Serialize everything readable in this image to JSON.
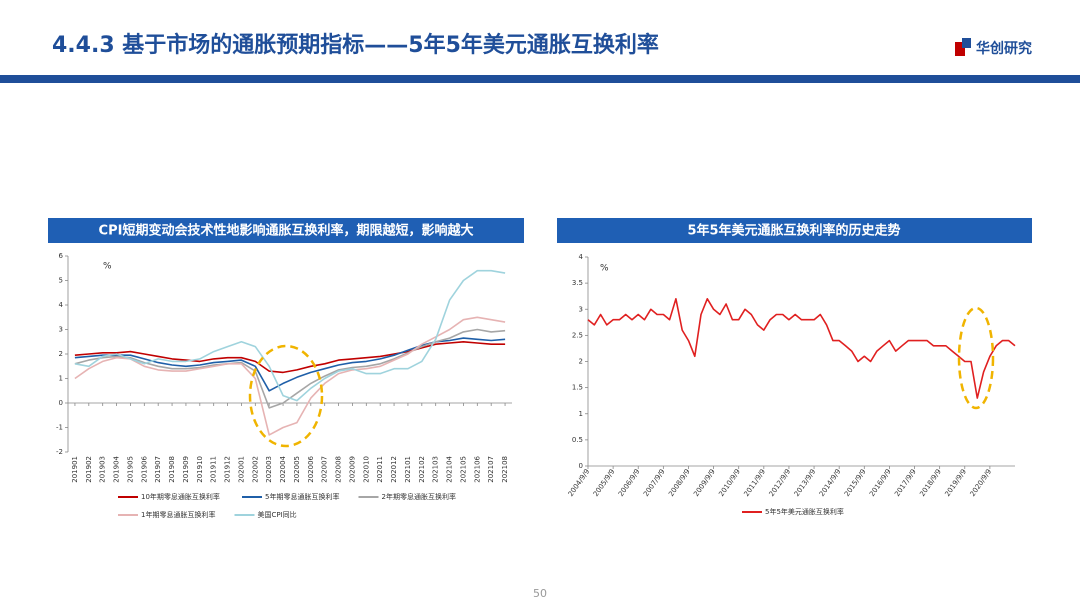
{
  "header": {
    "title": "4.4.3 基于市场的通胀预期指标——5年5年美元通胀互换利率",
    "logo": "华创研究"
  },
  "page_number": "50",
  "chart_data": [
    {
      "type": "line",
      "title": "CPI短期变动会技术性地影响通胀互换利率，期限越短，影响越大",
      "y_unit": "%",
      "categories": [
        "201901",
        "201902",
        "201903",
        "201904",
        "201905",
        "201906",
        "201907",
        "201908",
        "201909",
        "201910",
        "201911",
        "201912",
        "202001",
        "202002",
        "202003",
        "202004",
        "202005",
        "202006",
        "202007",
        "202008",
        "202009",
        "202010",
        "202011",
        "202012",
        "202101",
        "202102",
        "202103",
        "202104",
        "202105",
        "202106",
        "202107",
        "202108"
      ],
      "ylim": [
        -2,
        6
      ],
      "yticks": [
        -2,
        -1,
        0,
        1,
        2,
        3,
        4,
        5,
        6
      ],
      "series": [
        {
          "name": "10年期零息通胀互换利率",
          "color": "#c00000",
          "values": [
            1.95,
            2.0,
            2.05,
            2.05,
            2.1,
            2.0,
            1.9,
            1.8,
            1.75,
            1.7,
            1.8,
            1.85,
            1.85,
            1.7,
            1.3,
            1.25,
            1.35,
            1.5,
            1.6,
            1.75,
            1.8,
            1.85,
            1.9,
            2.0,
            2.1,
            2.25,
            2.4,
            2.45,
            2.5,
            2.45,
            2.4,
            2.4
          ]
        },
        {
          "name": "5年期零息通胀互换利率",
          "color": "#1f5fa8",
          "values": [
            1.85,
            1.9,
            1.95,
            1.95,
            1.95,
            1.8,
            1.65,
            1.55,
            1.5,
            1.55,
            1.65,
            1.7,
            1.75,
            1.5,
            0.5,
            0.8,
            1.05,
            1.25,
            1.4,
            1.55,
            1.65,
            1.7,
            1.8,
            1.95,
            2.15,
            2.35,
            2.5,
            2.55,
            2.65,
            2.6,
            2.55,
            2.6
          ]
        },
        {
          "name": "2年期零息通胀互换利率",
          "color": "#a6a6a6",
          "values": [
            1.6,
            1.75,
            1.85,
            1.9,
            1.85,
            1.65,
            1.5,
            1.4,
            1.4,
            1.45,
            1.55,
            1.6,
            1.65,
            1.3,
            -0.2,
            0.0,
            0.4,
            0.8,
            1.1,
            1.35,
            1.45,
            1.5,
            1.6,
            1.8,
            2.05,
            2.3,
            2.5,
            2.65,
            2.9,
            3.0,
            2.9,
            2.95
          ]
        },
        {
          "name": "1年期零息通胀互换利率",
          "color": "#e6b3b3",
          "values": [
            1.0,
            1.4,
            1.7,
            1.85,
            1.8,
            1.5,
            1.35,
            1.3,
            1.3,
            1.4,
            1.5,
            1.6,
            1.6,
            1.0,
            -1.3,
            -1.0,
            -0.8,
            0.2,
            0.8,
            1.2,
            1.35,
            1.4,
            1.5,
            1.75,
            2.0,
            2.4,
            2.7,
            3.0,
            3.4,
            3.5,
            3.4,
            3.3
          ]
        },
        {
          "name": "美国CPI同比",
          "color": "#9fd3dd",
          "values": [
            1.6,
            1.5,
            1.9,
            2.0,
            1.8,
            1.6,
            1.8,
            1.7,
            1.7,
            1.8,
            2.1,
            2.3,
            2.5,
            2.3,
            1.5,
            0.3,
            0.1,
            0.6,
            1.0,
            1.3,
            1.4,
            1.2,
            1.2,
            1.4,
            1.4,
            1.7,
            2.6,
            4.2,
            5.0,
            5.4,
            5.4,
            5.3
          ]
        }
      ]
    },
    {
      "type": "line",
      "title": "5年5年美元通胀互换利率的历史走势",
      "y_unit": "%",
      "categories": [
        "2004/9/9",
        null,
        null,
        null,
        "2005/9/9",
        null,
        null,
        null,
        "2006/9/9",
        null,
        null,
        null,
        "2007/9/9",
        null,
        null,
        null,
        "2008/9/9",
        null,
        null,
        null,
        "2009/9/9",
        null,
        null,
        null,
        "2010/9/9",
        null,
        null,
        null,
        "2011/9/9",
        null,
        null,
        null,
        "2012/9/9",
        null,
        null,
        null,
        "2013/9/9",
        null,
        null,
        null,
        "2014/9/9",
        null,
        null,
        null,
        "2015/9/9",
        null,
        null,
        null,
        "2016/9/9",
        null,
        null,
        null,
        "2017/9/9",
        null,
        null,
        null,
        "2018/9/9",
        null,
        null,
        null,
        "2019/9/9",
        null,
        null,
        null,
        "2020/9/9",
        null,
        null,
        null,
        null
      ],
      "ylim": [
        0,
        4
      ],
      "yticks": [
        0,
        0.5,
        1,
        1.5,
        2,
        2.5,
        3,
        3.5,
        4
      ],
      "series": [
        {
          "name": "5年5年美元通胀互换利率",
          "color": "#e02020",
          "values": [
            2.8,
            2.7,
            2.9,
            2.7,
            2.8,
            2.8,
            2.9,
            2.8,
            2.9,
            2.8,
            3.0,
            2.9,
            2.9,
            2.8,
            3.2,
            2.6,
            2.4,
            2.1,
            2.9,
            3.2,
            3.0,
            2.9,
            3.1,
            2.8,
            2.8,
            3.0,
            2.9,
            2.7,
            2.6,
            2.8,
            2.9,
            2.9,
            2.8,
            2.9,
            2.8,
            2.8,
            2.8,
            2.9,
            2.7,
            2.4,
            2.4,
            2.3,
            2.2,
            2.0,
            2.1,
            2.0,
            2.2,
            2.3,
            2.4,
            2.2,
            2.3,
            2.4,
            2.4,
            2.4,
            2.4,
            2.3,
            2.3,
            2.3,
            2.2,
            2.1,
            2.0,
            2.0,
            1.3,
            1.8,
            2.1,
            2.3,
            2.4,
            2.4,
            2.3
          ]
        }
      ]
    }
  ]
}
